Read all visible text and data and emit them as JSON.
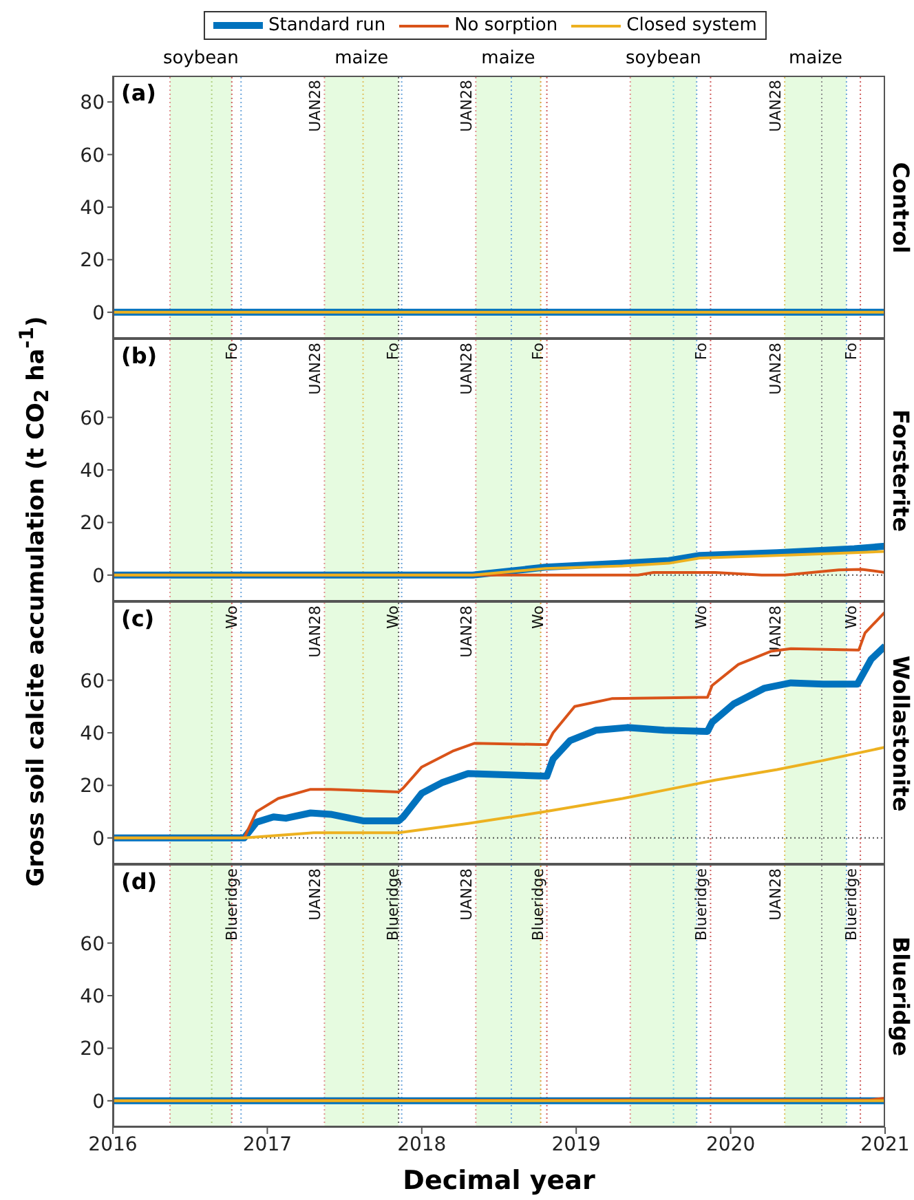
{
  "chart_data": [
    {
      "type": "line",
      "ylabel": "Gross soil calcite accumulation (t CO$_{2}$ ha$^{-1}$)",
      "y2label": "Control",
      "legend": "top",
      "tick_labels": "y",
      "xlim": [
        2016,
        2021
      ],
      "xticks": [
        2016,
        2017,
        2018,
        2019,
        2020,
        2021
      ],
      "ylim": [
        -10,
        90
      ],
      "yticks": [
        0,
        20,
        40,
        60,
        80
      ],
      "annotations": [
        "(a)"
      ],
      "bands": [
        {
          "axis": "x",
          "from": 2016.37,
          "to": 2016.77,
          "color": "#e6fbe0",
          "label": "soybean"
        },
        {
          "axis": "x",
          "from": 2017.37,
          "to": 2017.85,
          "color": "#e6fbe0",
          "label": "maize"
        },
        {
          "axis": "x",
          "from": 2018.35,
          "to": 2018.77,
          "color": "#e6fbe0",
          "label": "maize"
        },
        {
          "axis": "x",
          "from": 2019.35,
          "to": 2019.78,
          "color": "#e6fbe0",
          "label": "soybean"
        },
        {
          "axis": "x",
          "from": 2020.35,
          "to": 2020.75,
          "color": "#e6fbe0",
          "label": "maize"
        }
      ],
      "ref_lines": [
        {
          "axis": "x",
          "value": 2016.37,
          "color": "#e09090",
          "line_style": "dotted"
        },
        {
          "axis": "x",
          "value": 2016.64,
          "color": "#b0d080",
          "line_style": "dotted"
        },
        {
          "axis": "x",
          "value": 2016.77,
          "color": "#d06060",
          "line_style": "dotted"
        },
        {
          "axis": "x",
          "value": 2016.83,
          "color": "#6fa8dc",
          "line_style": "dotted"
        },
        {
          "axis": "x",
          "value": 2017.37,
          "color": "#e09090",
          "line_style": "dotted",
          "label": "UAN28"
        },
        {
          "axis": "x",
          "value": 2017.62,
          "color": "#e0c060",
          "line_style": "dotted"
        },
        {
          "axis": "x",
          "value": 2017.85,
          "color": "#606060",
          "line_style": "dotted"
        },
        {
          "axis": "x",
          "value": 2017.87,
          "color": "#6fa8dc",
          "line_style": "dotted"
        },
        {
          "axis": "x",
          "value": 2018.35,
          "color": "#e09090",
          "line_style": "dotted",
          "label": "UAN28"
        },
        {
          "axis": "x",
          "value": 2018.58,
          "color": "#6fa8dc",
          "line_style": "dotted"
        },
        {
          "axis": "x",
          "value": 2018.77,
          "color": "#e0a040",
          "line_style": "dotted"
        },
        {
          "axis": "x",
          "value": 2018.81,
          "color": "#d06060",
          "line_style": "dotted"
        },
        {
          "axis": "x",
          "value": 2019.35,
          "color": "#e09090",
          "line_style": "dotted"
        },
        {
          "axis": "x",
          "value": 2019.63,
          "color": "#80d0e0",
          "line_style": "dotted"
        },
        {
          "axis": "x",
          "value": 2019.78,
          "color": "#6fa8dc",
          "line_style": "dotted"
        },
        {
          "axis": "x",
          "value": 2019.87,
          "color": "#d06060",
          "line_style": "dotted"
        },
        {
          "axis": "x",
          "value": 2020.35,
          "color": "#e0c060",
          "line_style": "dotted",
          "label": "UAN28"
        },
        {
          "axis": "x",
          "value": 2020.59,
          "color": "#909090",
          "line_style": "dotted"
        },
        {
          "axis": "x",
          "value": 2020.75,
          "color": "#6fa8dc",
          "line_style": "dotted"
        },
        {
          "axis": "x",
          "value": 2020.84,
          "color": "#d06060",
          "line_style": "dotted"
        }
      ],
      "series": [
        {
          "name": "Standard run",
          "color": "#0072bd",
          "x": [
            2016,
            2021
          ],
          "values": [
            0,
            0
          ]
        },
        {
          "name": "No sorption",
          "color": "#d95319"
        },
        {
          "name": "Closed system",
          "color": "#edb120",
          "x": [
            2016,
            2021
          ],
          "values": [
            0,
            0
          ]
        }
      ]
    },
    {
      "type": "line",
      "y2label": "Forsterite",
      "tick_labels": "y",
      "xlim": [
        2016,
        2021
      ],
      "xticks": [
        2016,
        2017,
        2018,
        2019,
        2020,
        2021
      ],
      "ylim": [
        -10,
        90
      ],
      "yticks": [
        0,
        20,
        40,
        60
      ],
      "annotations": [
        "(b)"
      ],
      "bands": [
        {
          "axis": "x",
          "from": 2016.37,
          "to": 2016.77,
          "color": "#e6fbe0"
        },
        {
          "axis": "x",
          "from": 2017.37,
          "to": 2017.85,
          "color": "#e6fbe0"
        },
        {
          "axis": "x",
          "from": 2018.35,
          "to": 2018.77,
          "color": "#e6fbe0"
        },
        {
          "axis": "x",
          "from": 2019.35,
          "to": 2019.78,
          "color": "#e6fbe0"
        },
        {
          "axis": "x",
          "from": 2020.35,
          "to": 2020.75,
          "color": "#e6fbe0"
        }
      ],
      "ref_lines": [
        {
          "axis": "y",
          "value": 0,
          "color": "#555555",
          "line_style": "dotted"
        },
        {
          "axis": "x",
          "value": 2016.37,
          "color": "#e09090",
          "line_style": "dotted"
        },
        {
          "axis": "x",
          "value": 2016.64,
          "color": "#b0d080",
          "line_style": "dotted"
        },
        {
          "axis": "x",
          "value": 2016.77,
          "color": "#d06060",
          "line_style": "dotted"
        },
        {
          "axis": "x",
          "value": 2016.83,
          "color": "#6fa8dc",
          "line_style": "dotted",
          "label": "Fo"
        },
        {
          "axis": "x",
          "value": 2017.37,
          "color": "#e09090",
          "line_style": "dotted",
          "label": "UAN28"
        },
        {
          "axis": "x",
          "value": 2017.62,
          "color": "#e0c060",
          "line_style": "dotted"
        },
        {
          "axis": "x",
          "value": 2017.85,
          "color": "#606060",
          "line_style": "dotted"
        },
        {
          "axis": "x",
          "value": 2017.87,
          "color": "#6fa8dc",
          "line_style": "dotted",
          "label": "Fo"
        },
        {
          "axis": "x",
          "value": 2018.35,
          "color": "#e09090",
          "line_style": "dotted",
          "label": "UAN28"
        },
        {
          "axis": "x",
          "value": 2018.58,
          "color": "#6fa8dc",
          "line_style": "dotted"
        },
        {
          "axis": "x",
          "value": 2018.77,
          "color": "#e0a040",
          "line_style": "dotted"
        },
        {
          "axis": "x",
          "value": 2018.81,
          "color": "#d06060",
          "line_style": "dotted",
          "label": "Fo"
        },
        {
          "axis": "x",
          "value": 2019.35,
          "color": "#e09090",
          "line_style": "dotted"
        },
        {
          "axis": "x",
          "value": 2019.63,
          "color": "#80d0e0",
          "line_style": "dotted"
        },
        {
          "axis": "x",
          "value": 2019.78,
          "color": "#6fa8dc",
          "line_style": "dotted"
        },
        {
          "axis": "x",
          "value": 2019.87,
          "color": "#d06060",
          "line_style": "dotted",
          "label": "Fo"
        },
        {
          "axis": "x",
          "value": 2020.35,
          "color": "#e0c060",
          "line_style": "dotted",
          "label": "UAN28"
        },
        {
          "axis": "x",
          "value": 2020.59,
          "color": "#909090",
          "line_style": "dotted"
        },
        {
          "axis": "x",
          "value": 2020.75,
          "color": "#6fa8dc",
          "line_style": "dotted"
        },
        {
          "axis": "x",
          "value": 2020.84,
          "color": "#d06060",
          "line_style": "dotted",
          "label": "Fo"
        }
      ],
      "series": [
        {
          "color": "#0072bd",
          "x": [
            2016,
            2018.33,
            2018.8,
            2019.3,
            2019.6,
            2019.8,
            2020.3,
            2020.8,
            2021
          ],
          "values": [
            0,
            0,
            3,
            4.5,
            5.5,
            7.5,
            8.5,
            10,
            11
          ]
        },
        {
          "color": "#d95319",
          "x": [
            2016,
            2019.4,
            2019.5,
            2019.9,
            2020.2,
            2020.35,
            2020.7,
            2020.85,
            2021
          ],
          "values": [
            0,
            0,
            1,
            1,
            0,
            0,
            2,
            2.2,
            1
          ]
        },
        {
          "color": "#edb120",
          "x": [
            2016,
            2018.33,
            2018.8,
            2019.3,
            2019.6,
            2019.8,
            2020.3,
            2020.8,
            2021
          ],
          "values": [
            0,
            0,
            2.5,
            3.5,
            4.5,
            6.5,
            7.5,
            8.5,
            9
          ]
        }
      ]
    },
    {
      "type": "line",
      "y2label": "Wollastonite",
      "tick_labels": "y",
      "xlim": [
        2016,
        2021
      ],
      "xticks": [
        2016,
        2017,
        2018,
        2019,
        2020,
        2021
      ],
      "ylim": [
        -10,
        90
      ],
      "yticks": [
        0,
        20,
        40,
        60
      ],
      "annotations": [
        "(c)"
      ],
      "bands": [
        {
          "axis": "x",
          "from": 2016.37,
          "to": 2016.77,
          "color": "#e6fbe0"
        },
        {
          "axis": "x",
          "from": 2017.37,
          "to": 2017.85,
          "color": "#e6fbe0"
        },
        {
          "axis": "x",
          "from": 2018.35,
          "to": 2018.77,
          "color": "#e6fbe0"
        },
        {
          "axis": "x",
          "from": 2019.35,
          "to": 2019.78,
          "color": "#e6fbe0"
        },
        {
          "axis": "x",
          "from": 2020.35,
          "to": 2020.75,
          "color": "#e6fbe0"
        }
      ],
      "ref_lines": [
        {
          "axis": "y",
          "value": 0,
          "color": "#555555",
          "line_style": "dotted"
        },
        {
          "axis": "x",
          "value": 2016.37,
          "color": "#e09090",
          "line_style": "dotted"
        },
        {
          "axis": "x",
          "value": 2016.64,
          "color": "#b0d080",
          "line_style": "dotted"
        },
        {
          "axis": "x",
          "value": 2016.77,
          "color": "#d06060",
          "line_style": "dotted"
        },
        {
          "axis": "x",
          "value": 2016.83,
          "color": "#6fa8dc",
          "line_style": "dotted",
          "label": "Wo"
        },
        {
          "axis": "x",
          "value": 2017.37,
          "color": "#e09090",
          "line_style": "dotted",
          "label": "UAN28"
        },
        {
          "axis": "x",
          "value": 2017.62,
          "color": "#e0c060",
          "line_style": "dotted"
        },
        {
          "axis": "x",
          "value": 2017.85,
          "color": "#606060",
          "line_style": "dotted"
        },
        {
          "axis": "x",
          "value": 2017.87,
          "color": "#6fa8dc",
          "line_style": "dotted",
          "label": "Wo"
        },
        {
          "axis": "x",
          "value": 2018.35,
          "color": "#e09090",
          "line_style": "dotted",
          "label": "UAN28"
        },
        {
          "axis": "x",
          "value": 2018.58,
          "color": "#6fa8dc",
          "line_style": "dotted"
        },
        {
          "axis": "x",
          "value": 2018.77,
          "color": "#e0a040",
          "line_style": "dotted"
        },
        {
          "axis": "x",
          "value": 2018.81,
          "color": "#d06060",
          "line_style": "dotted",
          "label": "Wo"
        },
        {
          "axis": "x",
          "value": 2019.35,
          "color": "#e09090",
          "line_style": "dotted"
        },
        {
          "axis": "x",
          "value": 2019.63,
          "color": "#80d0e0",
          "line_style": "dotted"
        },
        {
          "axis": "x",
          "value": 2019.78,
          "color": "#6fa8dc",
          "line_style": "dotted"
        },
        {
          "axis": "x",
          "value": 2019.87,
          "color": "#d06060",
          "line_style": "dotted",
          "label": "Wo"
        },
        {
          "axis": "x",
          "value": 2020.35,
          "color": "#e0c060",
          "line_style": "dotted",
          "label": "UAN28"
        },
        {
          "axis": "x",
          "value": 2020.59,
          "color": "#909090",
          "line_style": "dotted"
        },
        {
          "axis": "x",
          "value": 2020.75,
          "color": "#6fa8dc",
          "line_style": "dotted"
        },
        {
          "axis": "x",
          "value": 2020.84,
          "color": "#d06060",
          "line_style": "dotted",
          "label": "Wo"
        }
      ],
      "series": [
        {
          "color": "#0072bd",
          "x": [
            2016,
            2016.85,
            2016.93,
            2017.04,
            2017.12,
            2017.28,
            2017.41,
            2017.62,
            2017.85,
            2017.88,
            2018.0,
            2018.13,
            2018.3,
            2018.54,
            2018.81,
            2018.85,
            2018.96,
            2019.13,
            2019.33,
            2019.57,
            2019.85,
            2019.88,
            2020.02,
            2020.22,
            2020.39,
            2020.6,
            2020.82,
            2020.91,
            2021
          ],
          "values": [
            0,
            0,
            6,
            8,
            7.5,
            9.5,
            9,
            6.5,
            6.5,
            8,
            17,
            21,
            24.5,
            24,
            23.5,
            30,
            37,
            41,
            42,
            41,
            40.5,
            44,
            51,
            57,
            59,
            58.5,
            58.5,
            68,
            73
          ]
        },
        {
          "color": "#d95319",
          "x": [
            2016,
            2016.85,
            2016.93,
            2017.07,
            2017.28,
            2017.41,
            2017.85,
            2017.88,
            2018.0,
            2018.2,
            2018.34,
            2018.81,
            2018.85,
            2018.99,
            2019.23,
            2019.85,
            2019.88,
            2020.05,
            2020.26,
            2020.39,
            2020.83,
            2020.87,
            2021
          ],
          "values": [
            0,
            0,
            10,
            15,
            18.5,
            18.5,
            17.5,
            19,
            27,
            33,
            36,
            35.5,
            40,
            50,
            53,
            53.5,
            58,
            66,
            71,
            72,
            71.5,
            78,
            86
          ]
        },
        {
          "color": "#edb120",
          "x": [
            2016,
            2016.85,
            2017.3,
            2017.85,
            2018.3,
            2018.8,
            2019.3,
            2019.6,
            2019.9,
            2020.3,
            2020.6,
            2021
          ],
          "values": [
            0,
            0,
            2,
            2,
            5.5,
            10,
            15,
            18.5,
            22,
            26,
            29.5,
            34.5
          ]
        }
      ]
    },
    {
      "type": "line",
      "y2label": "Blueridge",
      "xlabel": "Decimal year",
      "xlim": [
        2016,
        2021
      ],
      "xticks": [
        2016,
        2017,
        2018,
        2019,
        2020,
        2021
      ],
      "ylim": [
        -10,
        90
      ],
      "yticks": [
        0,
        20,
        40,
        60
      ],
      "annotations": [
        "(d)"
      ],
      "bands": [
        {
          "axis": "x",
          "from": 2016.37,
          "to": 2016.77,
          "color": "#e6fbe0"
        },
        {
          "axis": "x",
          "from": 2017.37,
          "to": 2017.85,
          "color": "#e6fbe0"
        },
        {
          "axis": "x",
          "from": 2018.35,
          "to": 2018.77,
          "color": "#e6fbe0"
        },
        {
          "axis": "x",
          "from": 2019.35,
          "to": 2019.78,
          "color": "#e6fbe0"
        },
        {
          "axis": "x",
          "from": 2020.35,
          "to": 2020.75,
          "color": "#e6fbe0"
        }
      ],
      "ref_lines": [
        {
          "axis": "x",
          "value": 2016.37,
          "color": "#e09090",
          "line_style": "dotted"
        },
        {
          "axis": "x",
          "value": 2016.64,
          "color": "#b0d080",
          "line_style": "dotted"
        },
        {
          "axis": "x",
          "value": 2016.77,
          "color": "#d06060",
          "line_style": "dotted"
        },
        {
          "axis": "x",
          "value": 2016.83,
          "color": "#6fa8dc",
          "line_style": "dotted",
          "label": "Blueridge"
        },
        {
          "axis": "x",
          "value": 2017.37,
          "color": "#e09090",
          "line_style": "dotted",
          "label": "UAN28"
        },
        {
          "axis": "x",
          "value": 2017.62,
          "color": "#e0c060",
          "line_style": "dotted"
        },
        {
          "axis": "x",
          "value": 2017.85,
          "color": "#606060",
          "line_style": "dotted"
        },
        {
          "axis": "x",
          "value": 2017.87,
          "color": "#6fa8dc",
          "line_style": "dotted",
          "label": "Blueridge"
        },
        {
          "axis": "x",
          "value": 2018.35,
          "color": "#e09090",
          "line_style": "dotted",
          "label": "UAN28"
        },
        {
          "axis": "x",
          "value": 2018.58,
          "color": "#6fa8dc",
          "line_style": "dotted"
        },
        {
          "axis": "x",
          "value": 2018.77,
          "color": "#e0a040",
          "line_style": "dotted"
        },
        {
          "axis": "x",
          "value": 2018.81,
          "color": "#d06060",
          "line_style": "dotted",
          "label": "Blueridge"
        },
        {
          "axis": "x",
          "value": 2019.35,
          "color": "#e09090",
          "line_style": "dotted"
        },
        {
          "axis": "x",
          "value": 2019.63,
          "color": "#80d0e0",
          "line_style": "dotted"
        },
        {
          "axis": "x",
          "value": 2019.78,
          "color": "#6fa8dc",
          "line_style": "dotted"
        },
        {
          "axis": "x",
          "value": 2019.87,
          "color": "#d06060",
          "line_style": "dotted",
          "label": "Blueridge"
        },
        {
          "axis": "x",
          "value": 2020.35,
          "color": "#e0c060",
          "line_style": "dotted",
          "label": "UAN28"
        },
        {
          "axis": "x",
          "value": 2020.59,
          "color": "#909090",
          "line_style": "dotted"
        },
        {
          "axis": "x",
          "value": 2020.75,
          "color": "#6fa8dc",
          "line_style": "dotted"
        },
        {
          "axis": "x",
          "value": 2020.84,
          "color": "#d06060",
          "line_style": "dotted",
          "label": "Blueridge"
        }
      ],
      "series": [
        {
          "color": "#0072bd",
          "x": [
            2016,
            2021
          ],
          "values": [
            0,
            0
          ]
        },
        {
          "color": "#d95319",
          "x": [
            2016,
            2019.35,
            2020.9,
            2021
          ],
          "values": [
            0,
            0.3,
            0.3,
            1
          ]
        },
        {
          "color": "#edb120",
          "x": [
            2016,
            2021
          ],
          "values": [
            0,
            0
          ]
        }
      ]
    }
  ]
}
